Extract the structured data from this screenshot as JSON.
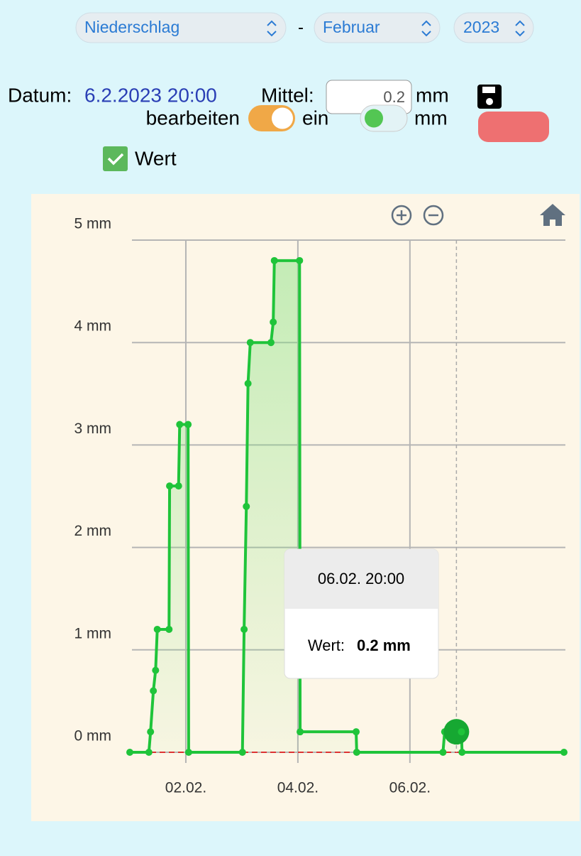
{
  "header": {
    "selects": [
      "Niederschlag",
      "Februar",
      "2023"
    ],
    "separator": "-"
  },
  "form": {
    "datum_label": "Datum:",
    "datum_value": "6.2.2023 20:00",
    "mittel_label": "Mittel:",
    "mittel_value": "0.2",
    "unit1": "mm",
    "edit_label": "bearbeiten",
    "edit_state": "ein",
    "unit2": "mm"
  },
  "chart_data": {
    "type": "line",
    "x": [
      1.0,
      1.34,
      1.37,
      1.42,
      1.46,
      1.49,
      1.7,
      1.71,
      1.87,
      1.89,
      2.04,
      2.05,
      3.01,
      3.04,
      3.08,
      3.11,
      3.15,
      3.52,
      3.56,
      3.58,
      4.03,
      4.04,
      5.04,
      5.05,
      6.59,
      6.62,
      6.83,
      6.92,
      6.93,
      8.75
    ],
    "series": [
      {
        "name": "Wert",
        "color": "#1fc43a",
        "values": [
          0,
          0,
          0.2,
          0.6,
          0.8,
          1.2,
          1.2,
          2.6,
          2.6,
          3.2,
          3.2,
          0,
          0,
          1.2,
          2.4,
          3.6,
          4.0,
          4.0,
          4.2,
          4.8,
          4.8,
          0.2,
          0.2,
          0,
          0,
          0.2,
          0.2,
          0.2,
          0,
          0
        ]
      }
    ],
    "xlim": [
      1,
      8.75
    ],
    "ylim": [
      0,
      5
    ],
    "xticks": [
      {
        "value": 2,
        "label": "02.02."
      },
      {
        "value": 4,
        "label": "04.02."
      },
      {
        "value": 6,
        "label": "06.02."
      }
    ],
    "yticks": [
      {
        "value": 0,
        "label": "0 mm"
      },
      {
        "value": 1,
        "label": "1 mm"
      },
      {
        "value": 2,
        "label": "2 mm"
      },
      {
        "value": 3,
        "label": "3 mm"
      },
      {
        "value": 4,
        "label": "4 mm"
      },
      {
        "value": 5,
        "label": "5 mm"
      }
    ],
    "grid": true,
    "reference_y": 0,
    "highlight_x": 6.83,
    "tooltip": {
      "title": "06.02. 20:00",
      "label": "Wert:",
      "value": "0.2 mm"
    }
  }
}
